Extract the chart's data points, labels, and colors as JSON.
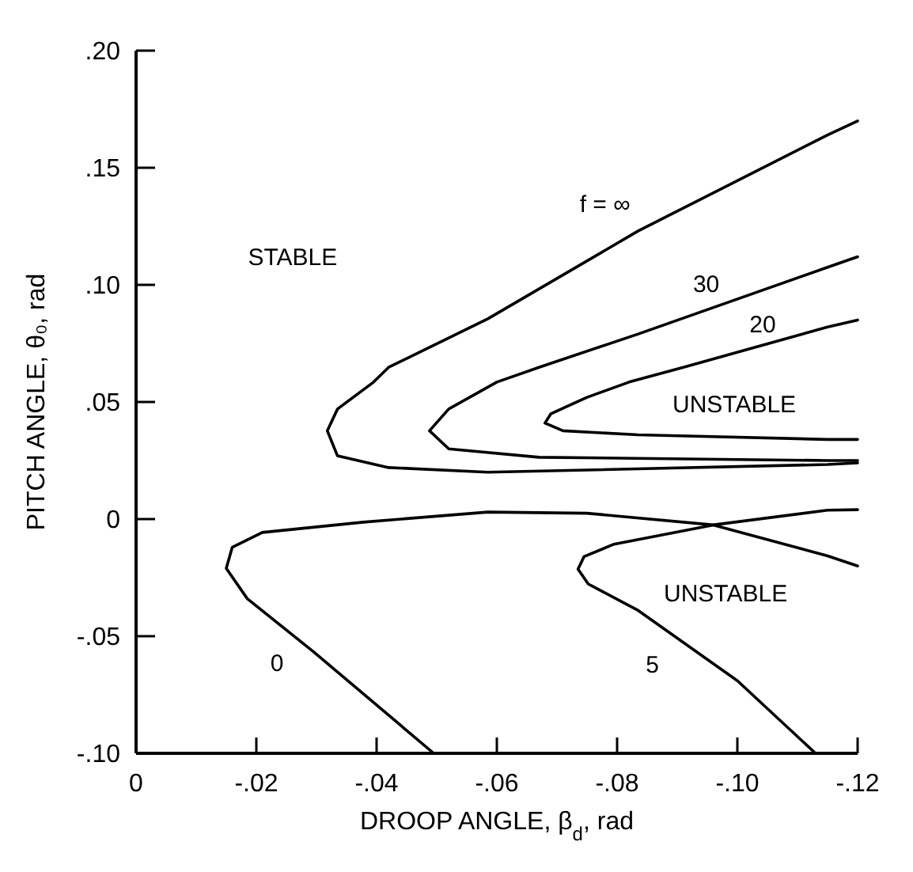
{
  "chart_data": {
    "type": "line",
    "xlabel": "DROOP ANGLE, β$_{d}$, rad",
    "ylabel": "PITCH ANGLE, θ₀, rad",
    "xlim": [
      0,
      -0.12
    ],
    "ylim": [
      -0.1,
      0.2
    ],
    "xticks": [
      0,
      {
        "value": -0.02,
        "label": "-.02"
      },
      {
        "value": -0.04,
        "label": "-.04"
      },
      {
        "value": -0.06,
        "label": "-.06"
      },
      {
        "value": -0.08,
        "label": "-.08"
      },
      {
        "value": -0.1,
        "label": "-.10"
      },
      {
        "value": -0.12,
        "label": "-.12"
      }
    ],
    "yticks": [
      {
        "value": -0.1,
        "label": "-.10"
      },
      {
        "value": -0.05,
        "label": "-.05"
      },
      0,
      {
        "value": 0.05,
        "label": ".05"
      },
      {
        "value": 0.1,
        "label": ".10"
      },
      {
        "value": 0.15,
        "label": ".15"
      },
      {
        "value": 0.2,
        "label": ".20"
      }
    ],
    "grid": false,
    "marker": "none",
    "line_style": "solid",
    "series": [
      {
        "name": "f = ∞",
        "color": "#000000",
        "x": [
          -0.12,
          -0.115,
          -0.0835,
          -0.0585,
          -0.042,
          -0.0395,
          -0.0335,
          -0.0318,
          -0.0335,
          -0.042,
          -0.0585,
          -0.115,
          -0.12
        ],
        "values": [
          0.17,
          0.164,
          0.123,
          0.0855,
          0.0648,
          0.0585,
          0.047,
          0.0377,
          0.027,
          0.022,
          0.02,
          0.0233,
          0.024
        ]
      },
      {
        "name": "30",
        "color": "#000000",
        "x": [
          -0.12,
          -0.115,
          -0.0835,
          -0.067,
          -0.06,
          -0.052,
          -0.0488,
          -0.052,
          -0.067,
          -0.115,
          -0.12
        ],
        "values": [
          0.112,
          0.1075,
          0.079,
          0.0648,
          0.0585,
          0.047,
          0.0377,
          0.03,
          0.0264,
          0.025,
          0.025
        ]
      },
      {
        "name": "20",
        "color": "#000000",
        "x": [
          -0.12,
          -0.115,
          -0.091,
          -0.082,
          -0.075,
          -0.069,
          -0.068,
          -0.071,
          -0.0835,
          -0.115,
          -0.12
        ],
        "values": [
          0.085,
          0.082,
          0.0648,
          0.0585,
          0.052,
          0.045,
          0.041,
          0.0377,
          0.036,
          0.034,
          0.034
        ]
      },
      {
        "name": "0",
        "color": "#000000",
        "x": [
          -0.12,
          -0.115,
          -0.096,
          -0.075,
          -0.0585,
          -0.0378,
          -0.021,
          -0.016,
          -0.015,
          -0.0185,
          -0.0295,
          -0.0495
        ],
        "values": [
          -0.02,
          -0.0157,
          -0.0025,
          0.0025,
          0.003,
          -0.0013,
          -0.0057,
          -0.012,
          -0.021,
          -0.034,
          -0.0566,
          -0.1
        ]
      },
      {
        "name": "5",
        "color": "#000000",
        "x": [
          -0.12,
          -0.115,
          -0.096,
          -0.0795,
          -0.0745,
          -0.0735,
          -0.0752,
          -0.0835,
          -0.1,
          -0.113
        ],
        "values": [
          0.004,
          0.0038,
          -0.0025,
          -0.0107,
          -0.016,
          -0.0214,
          -0.0277,
          -0.039,
          -0.069,
          -0.1
        ]
      }
    ],
    "annotations": [
      "STABLE",
      "UNSTABLE",
      "UNSTABLE"
    ]
  }
}
